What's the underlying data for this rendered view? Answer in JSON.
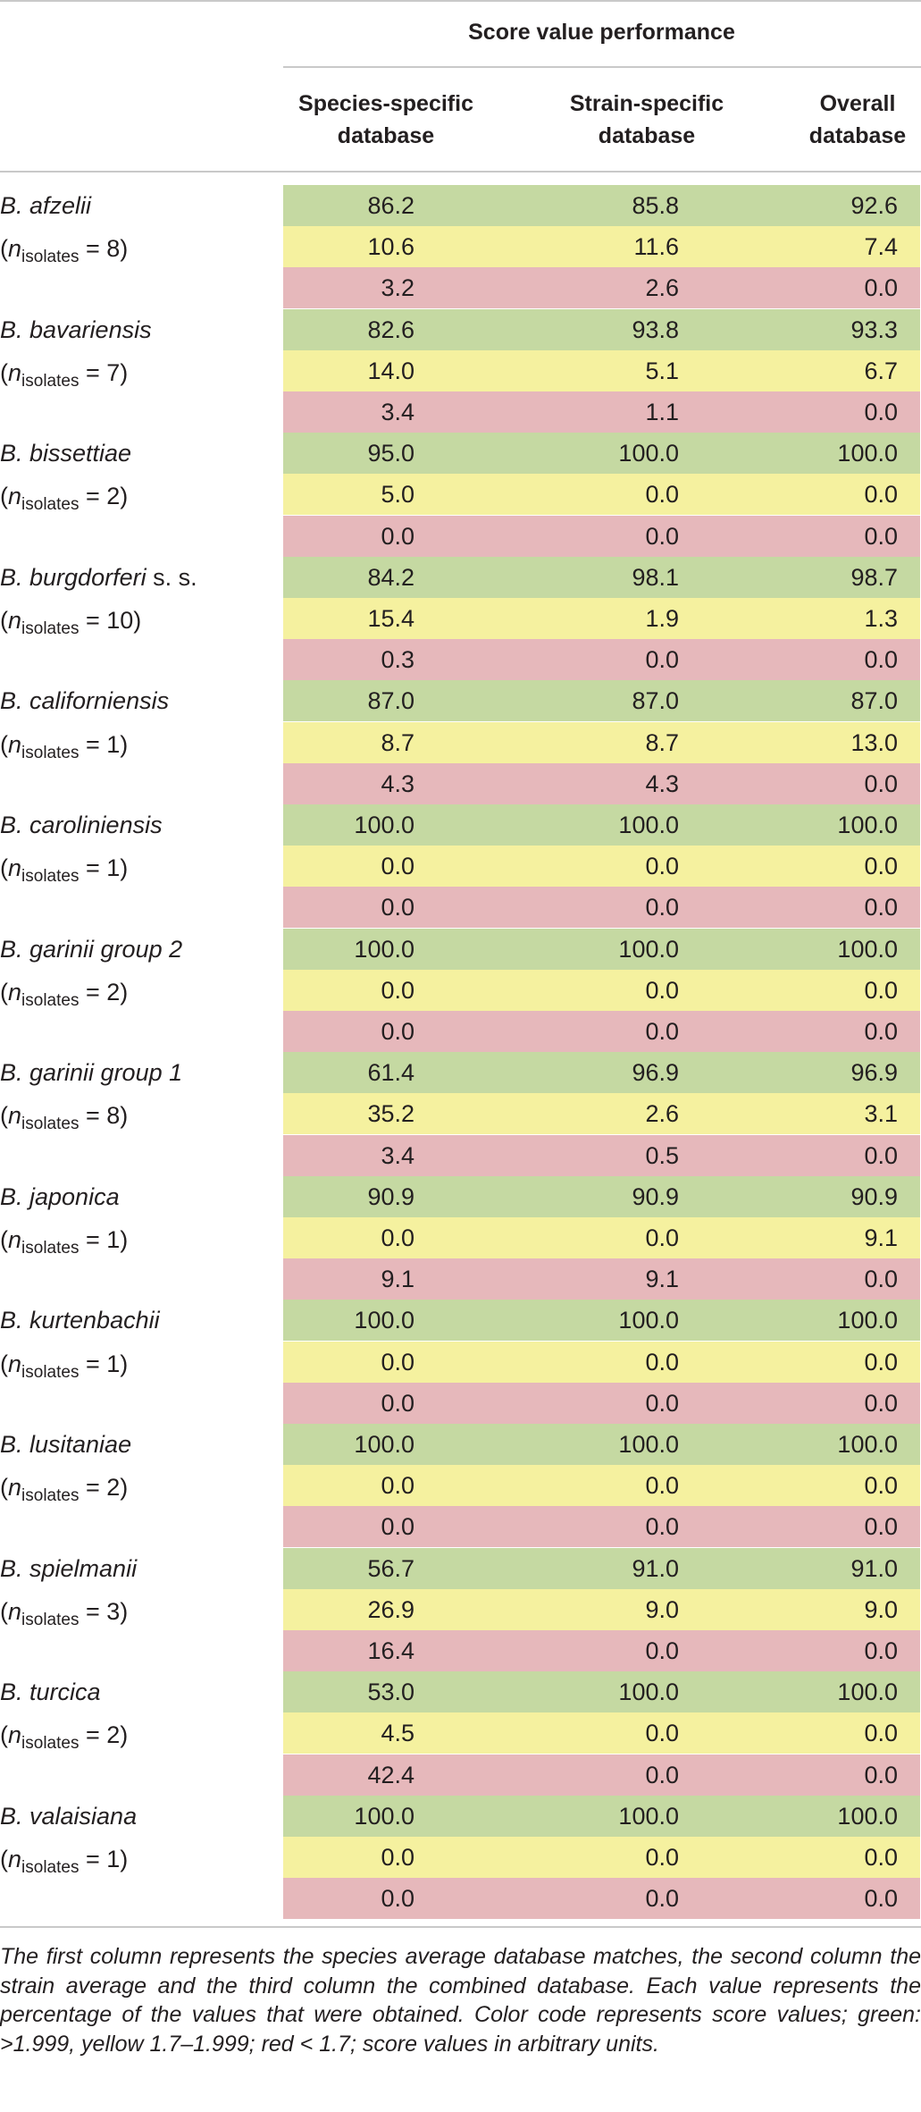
{
  "header": {
    "group_title": "Score value performance",
    "columns": [
      {
        "line1": "Species-specific",
        "line2": "database"
      },
      {
        "line1": "Strain-specific",
        "line2": "database"
      },
      {
        "line1": "Overall",
        "line2": "database"
      }
    ]
  },
  "colors": {
    "green": "#c5d9a2",
    "yellow": "#f5f19f",
    "red": "#e6b8bb",
    "rule": "#c9c9c9"
  },
  "species": [
    {
      "name": "B. afzelii",
      "suffix": "",
      "n_label": "n",
      "n_sub": "isolates",
      "n_value": "= 8)",
      "rows": [
        [
          "86.2",
          "85.8",
          "92.6"
        ],
        [
          "10.6",
          "11.6",
          "7.4"
        ],
        [
          "3.2",
          "2.6",
          "0.0"
        ]
      ]
    },
    {
      "name": "B. bavariensis",
      "suffix": "",
      "n_label": "n",
      "n_sub": "isolates",
      "n_value": "= 7)",
      "rows": [
        [
          "82.6",
          "93.8",
          "93.3"
        ],
        [
          "14.0",
          "5.1",
          "6.7"
        ],
        [
          "3.4",
          "1.1",
          "0.0"
        ]
      ]
    },
    {
      "name": "B. bissettiae",
      "suffix": "",
      "n_label": "n",
      "n_sub": "isolates",
      "n_value": "= 2)",
      "rows": [
        [
          "95.0",
          "100.0",
          "100.0"
        ],
        [
          "5.0",
          "0.0",
          "0.0"
        ],
        [
          "0.0",
          "0.0",
          "0.0"
        ]
      ]
    },
    {
      "name": "B. burgdorferi",
      "suffix": " s. s.",
      "n_label": "n",
      "n_sub": "isolates",
      "n_value": "= 10)",
      "rows": [
        [
          "84.2",
          "98.1",
          "98.7"
        ],
        [
          "15.4",
          "1.9",
          "1.3"
        ],
        [
          "0.3",
          "0.0",
          "0.0"
        ]
      ]
    },
    {
      "name": "B. californiensis",
      "suffix": "",
      "n_label": "n",
      "n_sub": "isolates",
      "n_value": "= 1)",
      "rows": [
        [
          "87.0",
          "87.0",
          "87.0"
        ],
        [
          "8.7",
          "8.7",
          "13.0"
        ],
        [
          "4.3",
          "4.3",
          "0.0"
        ]
      ]
    },
    {
      "name": "B. caroliniensis",
      "suffix": "",
      "n_label": "n",
      "n_sub": "isolates",
      "n_value": "= 1)",
      "rows": [
        [
          "100.0",
          "100.0",
          "100.0"
        ],
        [
          "0.0",
          "0.0",
          "0.0"
        ],
        [
          "0.0",
          "0.0",
          "0.0"
        ]
      ]
    },
    {
      "name": "B. garinii group 2",
      "suffix": "",
      "n_label": "n",
      "n_sub": "isolates",
      "n_value": "= 2)",
      "rows": [
        [
          "100.0",
          "100.0",
          "100.0"
        ],
        [
          "0.0",
          "0.0",
          "0.0"
        ],
        [
          "0.0",
          "0.0",
          "0.0"
        ]
      ]
    },
    {
      "name": "B. garinii group 1",
      "suffix": "",
      "n_label": "n",
      "n_sub": "isolates",
      "n_value": "= 8)",
      "rows": [
        [
          "61.4",
          "96.9",
          "96.9"
        ],
        [
          "35.2",
          "2.6",
          "3.1"
        ],
        [
          "3.4",
          "0.5",
          "0.0"
        ]
      ]
    },
    {
      "name": "B. japonica",
      "suffix": "",
      "n_label": "n",
      "n_sub": "isolates",
      "n_value": "= 1)",
      "rows": [
        [
          "90.9",
          "90.9",
          "90.9"
        ],
        [
          "0.0",
          "0.0",
          "9.1"
        ],
        [
          "9.1",
          "9.1",
          "0.0"
        ]
      ]
    },
    {
      "name": "B. kurtenbachii",
      "suffix": "",
      "n_label": "n",
      "n_sub": "isolates",
      "n_value": "= 1)",
      "rows": [
        [
          "100.0",
          "100.0",
          "100.0"
        ],
        [
          "0.0",
          "0.0",
          "0.0"
        ],
        [
          "0.0",
          "0.0",
          "0.0"
        ]
      ]
    },
    {
      "name": "B. lusitaniae",
      "suffix": "",
      "n_label": "n",
      "n_sub": "isolates",
      "n_value": "= 2)",
      "rows": [
        [
          "100.0",
          "100.0",
          "100.0"
        ],
        [
          "0.0",
          "0.0",
          "0.0"
        ],
        [
          "0.0",
          "0.0",
          "0.0"
        ]
      ]
    },
    {
      "name": "B. spielmanii",
      "suffix": "",
      "n_label": "n",
      "n_sub": "isolates",
      "n_value": "= 3)",
      "rows": [
        [
          "56.7",
          "91.0",
          "91.0"
        ],
        [
          "26.9",
          "9.0",
          "9.0"
        ],
        [
          "16.4",
          "0.0",
          "0.0"
        ]
      ]
    },
    {
      "name": "B. turcica",
      "suffix": "",
      "n_label": "n",
      "n_sub": "isolates",
      "n_value": "= 2)",
      "rows": [
        [
          "53.0",
          "100.0",
          "100.0"
        ],
        [
          "4.5",
          "0.0",
          "0.0"
        ],
        [
          "42.4",
          "0.0",
          "0.0"
        ]
      ]
    },
    {
      "name": "B. valaisiana",
      "suffix": "",
      "n_label": "n",
      "n_sub": "isolates",
      "n_value": "= 1)",
      "rows": [
        [
          "100.0",
          "100.0",
          "100.0"
        ],
        [
          "0.0",
          "0.0",
          "0.0"
        ],
        [
          "0.0",
          "0.0",
          "0.0"
        ]
      ]
    }
  ],
  "footnote": "The first column represents the species average database matches, the second column the strain average and the third column the combined database. Each value represents the percentage of the values that were obtained. Color code represents score values; green: >1.999, yellow 1.7–1.999; red < 1.7; score values in arbitrary units."
}
